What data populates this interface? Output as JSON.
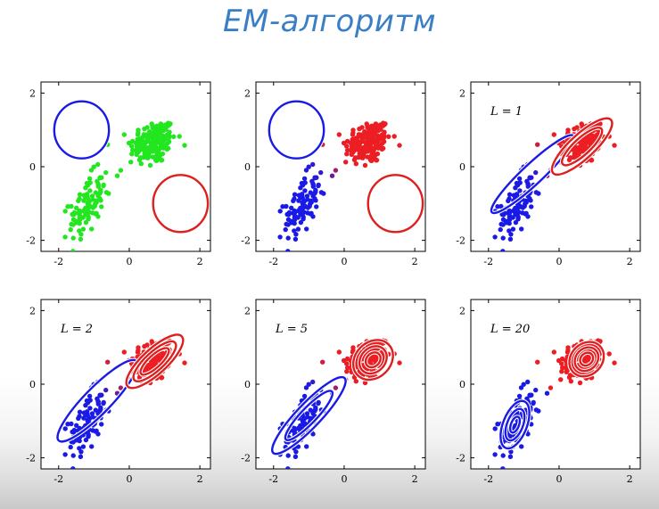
{
  "title": "EM-алгоритм",
  "chart_data": [
    {
      "type": "scatter",
      "panel_label": "",
      "state": "initial",
      "point_coloring": "green",
      "xlim": [
        -2.5,
        2.3
      ],
      "ylim": [
        -2.3,
        2.3
      ],
      "xticks": [
        "-2",
        "0",
        "2"
      ],
      "yticks": [
        "2",
        "0",
        "-2"
      ],
      "components": [
        {
          "color": "#1a1ae6",
          "mean": [
            -1.35,
            1.0
          ],
          "cov": [
            [
              0.15,
              0.0
            ],
            [
              0.0,
              0.15
            ]
          ],
          "contours": [
            2.0
          ]
        },
        {
          "color": "#dd1f1f",
          "mean": [
            1.45,
            -1.0
          ],
          "cov": [
            [
              0.15,
              0.0
            ],
            [
              0.0,
              0.15
            ]
          ],
          "contours": [
            2.0
          ]
        }
      ]
    },
    {
      "type": "scatter",
      "panel_label": "",
      "state": "E-step",
      "point_coloring": "responsibility",
      "xlim": [
        -2.5,
        2.3
      ],
      "ylim": [
        -2.3,
        2.3
      ],
      "xticks": [
        "-2",
        "0",
        "2"
      ],
      "yticks": [
        "2",
        "0",
        "-2"
      ],
      "components": [
        {
          "color": "#1a1ae6",
          "mean": [
            -1.35,
            1.0
          ],
          "cov": [
            [
              0.15,
              0.0
            ],
            [
              0.0,
              0.15
            ]
          ],
          "contours": [
            2.0
          ]
        },
        {
          "color": "#dd1f1f",
          "mean": [
            1.45,
            -1.0
          ],
          "cov": [
            [
              0.15,
              0.0
            ],
            [
              0.0,
              0.15
            ]
          ],
          "contours": [
            2.0
          ]
        }
      ]
    },
    {
      "type": "scatter",
      "panel_label": "L = 1",
      "state": "M-step",
      "point_coloring": "responsibility",
      "xlim": [
        -2.5,
        2.3
      ],
      "ylim": [
        -2.3,
        2.3
      ],
      "xticks": [
        "-2",
        "0",
        "2"
      ],
      "yticks": [
        "2",
        "0",
        "-2"
      ],
      "components": [
        {
          "color": "#1a1ae6",
          "mean": [
            -0.75,
            -0.2
          ],
          "cov": [
            [
              0.7,
              0.62
            ],
            [
              0.62,
              0.62
            ]
          ],
          "contours": [
            1.4
          ]
        },
        {
          "color": "#dd1f1f",
          "mean": [
            0.65,
            0.55
          ],
          "cov": [
            [
              0.32,
              0.25
            ],
            [
              0.25,
              0.28
            ]
          ],
          "contours": [
            1.0,
            1.5
          ]
        }
      ]
    },
    {
      "type": "scatter",
      "panel_label": "L = 2",
      "state": "M-step",
      "point_coloring": "responsibility",
      "xlim": [
        -2.5,
        2.3
      ],
      "ylim": [
        -2.3,
        2.3
      ],
      "xticks": [
        "-2",
        "0",
        "2"
      ],
      "yticks": [
        "2",
        "0",
        "-2"
      ],
      "components": [
        {
          "color": "#1a1ae6",
          "mean": [
            -0.9,
            -0.45
          ],
          "cov": [
            [
              0.65,
              0.6
            ],
            [
              0.6,
              0.68
            ]
          ],
          "contours": [
            1.4
          ]
        },
        {
          "color": "#dd1f1f",
          "mean": [
            0.72,
            0.62
          ],
          "cov": [
            [
              0.25,
              0.19
            ],
            [
              0.19,
              0.22
            ]
          ],
          "contours": [
            0.8,
            1.2,
            1.6
          ]
        }
      ]
    },
    {
      "type": "scatter",
      "panel_label": "L = 5",
      "state": "M-step",
      "point_coloring": "responsibility",
      "xlim": [
        -2.5,
        2.3
      ],
      "ylim": [
        -2.3,
        2.3
      ],
      "xticks": [
        "-2",
        "0",
        "2"
      ],
      "yticks": [
        "2",
        "0",
        "-2"
      ],
      "components": [
        {
          "color": "#1a1ae6",
          "mean": [
            -1.0,
            -0.85
          ],
          "cov": [
            [
              0.55,
              0.52
            ],
            [
              0.52,
              0.6
            ]
          ],
          "contours": [
            0.9,
            1.4
          ]
        },
        {
          "color": "#dd1f1f",
          "mean": [
            0.82,
            0.66
          ],
          "cov": [
            [
              0.12,
              0.03
            ],
            [
              0.03,
              0.12
            ]
          ],
          "contours": [
            0.6,
            1.1,
            1.6
          ]
        }
      ]
    },
    {
      "type": "scatter",
      "panel_label": "L = 20",
      "state": "converged",
      "point_coloring": "responsibility",
      "xlim": [
        -2.5,
        2.3
      ],
      "ylim": [
        -2.3,
        2.3
      ],
      "xticks": [
        "-2",
        "0",
        "2"
      ],
      "yticks": [
        "2",
        "0",
        "-2"
      ],
      "components": [
        {
          "color": "#1a1ae6",
          "mean": [
            -1.25,
            -1.1
          ],
          "cov": [
            [
              0.07,
              0.06
            ],
            [
              0.06,
              0.2
            ]
          ],
          "contours": [
            0.5,
            1.0,
            1.5
          ]
        },
        {
          "color": "#dd1f1f",
          "mean": [
            0.78,
            0.68
          ],
          "cov": [
            [
              0.09,
              0.02
            ],
            [
              0.02,
              0.09
            ]
          ],
          "contours": [
            0.6,
            1.1,
            1.6
          ]
        }
      ]
    }
  ]
}
